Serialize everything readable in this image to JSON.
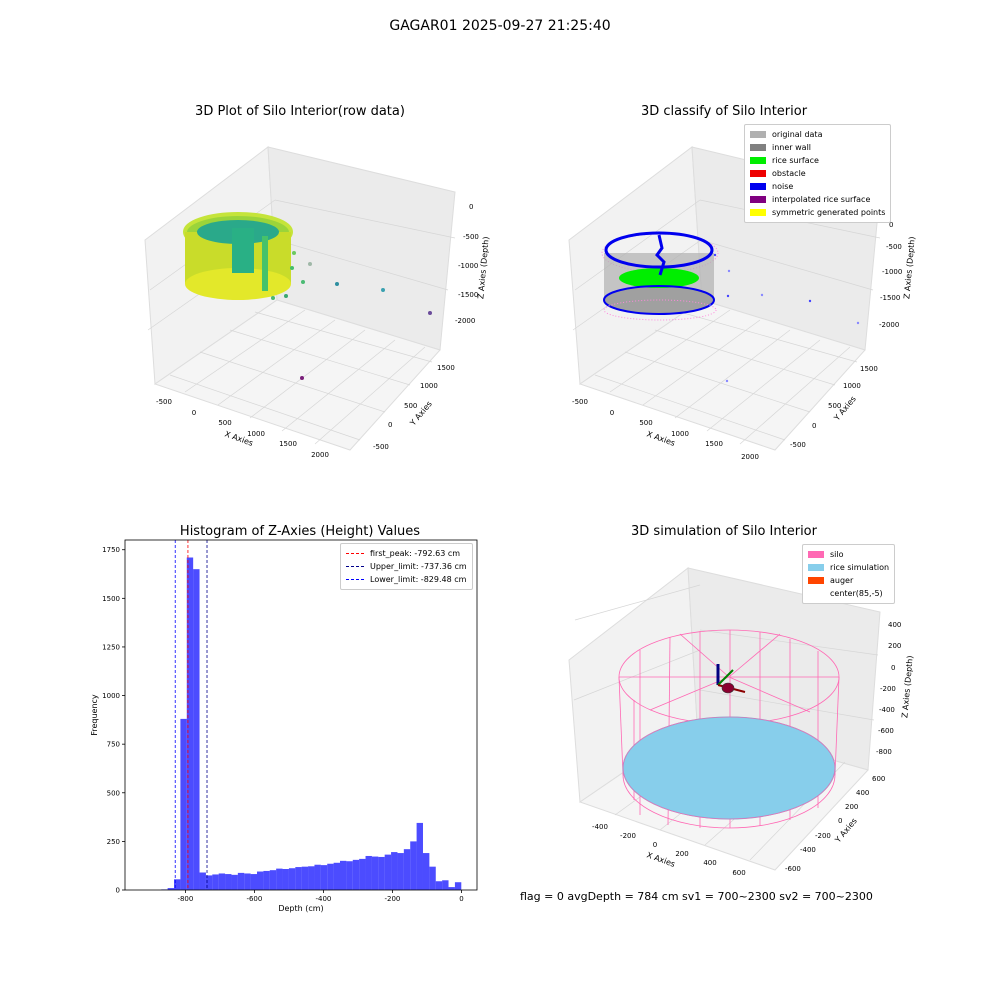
{
  "figure": {
    "suptitle": "GAGAR01 2025-09-27 21:25:40",
    "footer": "flag = 0     avgDepth = 784 cm  sv1 = 700~2300  sv2 = 700~2300"
  },
  "plots": {
    "raw": {
      "title": "3D Plot of Silo Interior(row data)",
      "xlabel": "X Axies",
      "ylabel": "Y Axies",
      "zlabel": "Z Axies (Depth)",
      "xticks": [
        "-500",
        "0",
        "500",
        "1000",
        "1500",
        "2000"
      ],
      "yticks": [
        "-500",
        "0",
        "500",
        "1000",
        "1500"
      ],
      "zticks": [
        "0",
        "-500",
        "-1000",
        "-1500",
        "-2000"
      ]
    },
    "classify": {
      "title": "3D classify of Silo Interior",
      "xlabel": "X Axies",
      "ylabel": "Y Axies",
      "zlabel": "Z Axies (Depth)",
      "xticks": [
        "-500",
        "0",
        "500",
        "1000",
        "1500",
        "2000"
      ],
      "yticks": [
        "-500",
        "0",
        "500",
        "1000",
        "1500"
      ],
      "zticks": [
        "0",
        "-500",
        "-1000",
        "-1500",
        "-2000"
      ],
      "legend": [
        {
          "label": "original data",
          "color": "#b0b0b0"
        },
        {
          "label": "inner wall",
          "color": "#808080"
        },
        {
          "label": "rice surface",
          "color": "#00ee00"
        },
        {
          "label": "obstacle",
          "color": "#ee0000"
        },
        {
          "label": "noise",
          "color": "#0000ee"
        },
        {
          "label": "interpolated rice surface",
          "color": "#800080"
        },
        {
          "label": "symmetric generated points",
          "color": "#ffff00"
        }
      ]
    },
    "simulation": {
      "title": "3D simulation of Silo Interior",
      "xlabel": "X Axies",
      "ylabel": "Y Axies",
      "zlabel": "Z Axies (Depth)",
      "xticks": [
        "-400",
        "-200",
        "0",
        "200",
        "400",
        "600"
      ],
      "yticks": [
        "-600",
        "-400",
        "-200",
        "0",
        "200",
        "400",
        "600"
      ],
      "zticks": [
        "400",
        "200",
        "0",
        "-200",
        "-400",
        "-600",
        "-800"
      ],
      "legend": [
        {
          "label": "silo",
          "color": "#ff69b4"
        },
        {
          "label": "rice simulation",
          "color": "#87ceeb"
        },
        {
          "label": "auger",
          "color": "#ff4500"
        },
        {
          "label": "center(85,-5)",
          "color": ""
        }
      ]
    }
  },
  "chart_data": [
    {
      "type": "bar",
      "title": "Histogram of Z-Axies (Height) Values",
      "xlabel": "Depth (cm)",
      "ylabel": "Frequency",
      "xlim": [
        -975,
        45
      ],
      "ylim": [
        0,
        1800
      ],
      "xticks": [
        -800,
        -600,
        -400,
        -200,
        0
      ],
      "yticks": [
        0,
        250,
        500,
        750,
        1000,
        1250,
        1500,
        1750
      ],
      "bar_color": "#0000ff",
      "bin_width": 18.5,
      "bins": [
        {
          "x": -870.0,
          "y": 3
        },
        {
          "x": -851.5,
          "y": 10
        },
        {
          "x": -833.0,
          "y": 55
        },
        {
          "x": -814.5,
          "y": 880
        },
        {
          "x": -796.0,
          "y": 1710
        },
        {
          "x": -777.5,
          "y": 1650
        },
        {
          "x": -759.0,
          "y": 90
        },
        {
          "x": -740.5,
          "y": 75
        },
        {
          "x": -722.0,
          "y": 80
        },
        {
          "x": -703.5,
          "y": 85
        },
        {
          "x": -685.0,
          "y": 82
        },
        {
          "x": -666.5,
          "y": 78
        },
        {
          "x": -648.0,
          "y": 88
        },
        {
          "x": -629.5,
          "y": 85
        },
        {
          "x": -611.0,
          "y": 82
        },
        {
          "x": -592.5,
          "y": 95
        },
        {
          "x": -574.0,
          "y": 98
        },
        {
          "x": -555.5,
          "y": 102
        },
        {
          "x": -537.0,
          "y": 110
        },
        {
          "x": -518.5,
          "y": 108
        },
        {
          "x": -500.0,
          "y": 112
        },
        {
          "x": -481.5,
          "y": 118
        },
        {
          "x": -463.0,
          "y": 120
        },
        {
          "x": -444.5,
          "y": 122
        },
        {
          "x": -426.0,
          "y": 130
        },
        {
          "x": -407.5,
          "y": 128
        },
        {
          "x": -389.0,
          "y": 135
        },
        {
          "x": -370.5,
          "y": 140
        },
        {
          "x": -352.0,
          "y": 150
        },
        {
          "x": -333.5,
          "y": 148
        },
        {
          "x": -315.0,
          "y": 155
        },
        {
          "x": -296.5,
          "y": 160
        },
        {
          "x": -278.0,
          "y": 175
        },
        {
          "x": -259.5,
          "y": 172
        },
        {
          "x": -241.0,
          "y": 170
        },
        {
          "x": -222.5,
          "y": 182
        },
        {
          "x": -204.0,
          "y": 195
        },
        {
          "x": -185.5,
          "y": 190
        },
        {
          "x": -167.0,
          "y": 210
        },
        {
          "x": -148.5,
          "y": 250
        },
        {
          "x": -130.0,
          "y": 345
        },
        {
          "x": -111.5,
          "y": 190
        },
        {
          "x": -93.0,
          "y": 120
        },
        {
          "x": -74.5,
          "y": 45
        },
        {
          "x": -56.0,
          "y": 50
        },
        {
          "x": -37.5,
          "y": 15
        },
        {
          "x": -19.0,
          "y": 40
        }
      ],
      "vlines": [
        {
          "label": "first_peak: -792.63 cm",
          "x": -792.63,
          "color": "#ff0000"
        },
        {
          "label": "Upper_limit: -737.36 cm",
          "x": -737.36,
          "color": "#00008b"
        },
        {
          "label": "Lower_limit: -829.48 cm",
          "x": -829.48,
          "color": "#0000ff"
        }
      ]
    }
  ]
}
